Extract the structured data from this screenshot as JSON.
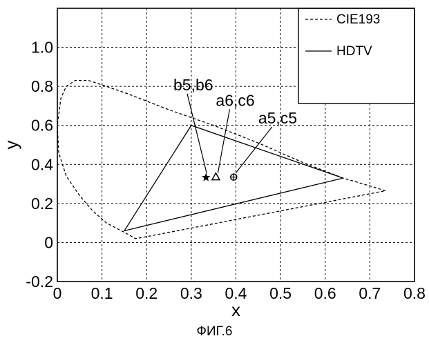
{
  "chart_data": {
    "type": "line",
    "title": "",
    "xlabel": "x",
    "ylabel": "y",
    "xlim": [
      0,
      0.8
    ],
    "ylim": [
      -0.2,
      1.2
    ],
    "xticks": [
      "0",
      "0.1",
      "0.2",
      "0.3",
      "0.4",
      "0.5",
      "0.6",
      "0.7",
      "0.8"
    ],
    "yticks": [
      "-0.2",
      "0",
      "0.2",
      "0.4",
      "0.6",
      "0.8",
      "1.0"
    ],
    "xtick_values": [
      0,
      0.1,
      0.2,
      0.3,
      0.4,
      0.5,
      0.6,
      0.7,
      0.8
    ],
    "ytick_values": [
      -0.2,
      0,
      0.2,
      0.4,
      0.6,
      0.8,
      1.0
    ],
    "grid": true,
    "grid_style": "dashed",
    "legend_position": "top-right",
    "series": [
      {
        "name": "CIE193",
        "style": "dashed",
        "x": [
          0.735,
          0.7,
          0.64,
          0.55,
          0.45,
          0.35,
          0.25,
          0.16,
          0.11,
          0.07,
          0.04,
          0.02,
          0.008,
          0.0,
          0.003,
          0.02,
          0.05,
          0.08,
          0.11,
          0.135,
          0.16,
          0.175,
          0.2,
          0.735
        ],
        "y": [
          0.265,
          0.29,
          0.33,
          0.41,
          0.51,
          0.6,
          0.68,
          0.76,
          0.8,
          0.83,
          0.83,
          0.8,
          0.74,
          0.6,
          0.46,
          0.34,
          0.24,
          0.16,
          0.1,
          0.07,
          0.04,
          0.02,
          0.03,
          0.265
        ]
      },
      {
        "name": "HDTV",
        "style": "solid",
        "x": [
          0.64,
          0.3,
          0.15,
          0.64
        ],
        "y": [
          0.33,
          0.6,
          0.06,
          0.33
        ]
      }
    ],
    "markers": [
      {
        "label": "b5,b6",
        "symbol": "star",
        "x": 0.333,
        "y": 0.333,
        "text_x": 0.26,
        "text_y": 0.78
      },
      {
        "label": "a6,c6",
        "symbol": "triangle",
        "x": 0.355,
        "y": 0.335,
        "text_x": 0.355,
        "text_y": 0.7
      },
      {
        "label": "a5,c5",
        "symbol": "circle-plus",
        "x": 0.395,
        "y": 0.335,
        "text_x": 0.45,
        "text_y": 0.61
      }
    ]
  },
  "caption": "ФИГ.6"
}
